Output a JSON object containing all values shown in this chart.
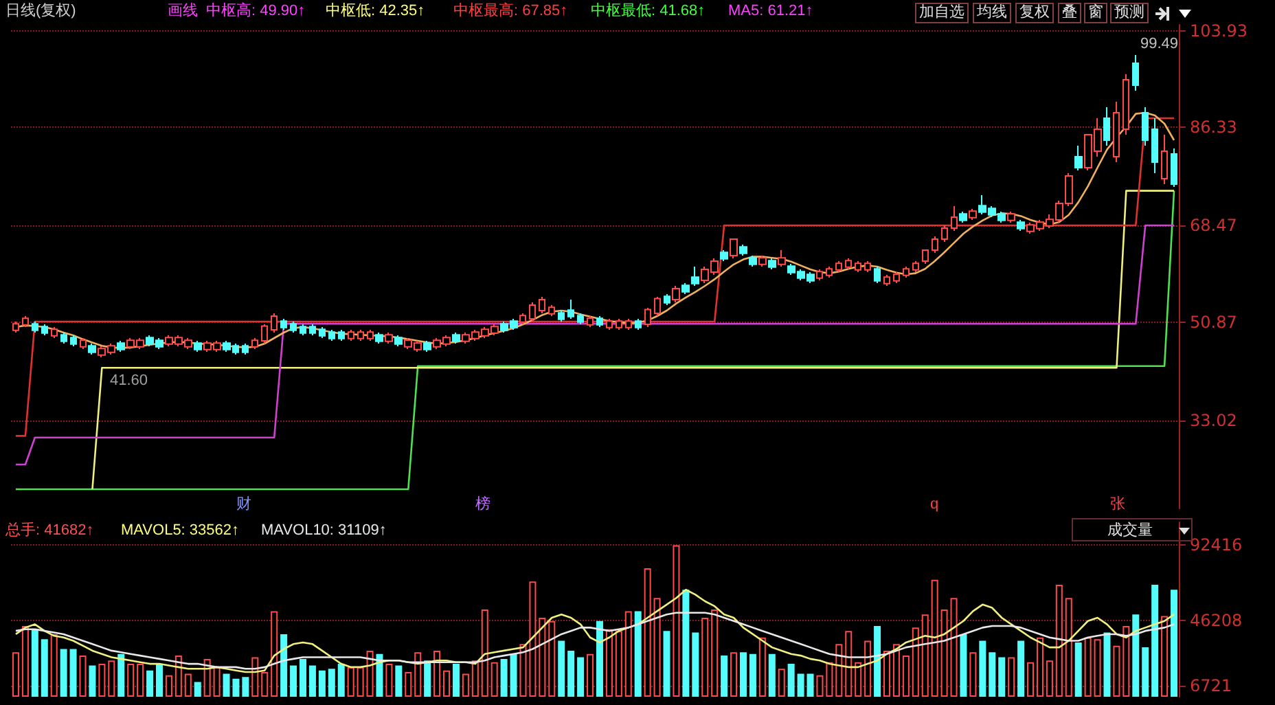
{
  "chart_data": [
    {
      "type": "candlestick",
      "categories": [
        null,
        null,
        null,
        null,
        null,
        null,
        null,
        null,
        null,
        null,
        null,
        null,
        null,
        null,
        null,
        null,
        null,
        null,
        null,
        null,
        null,
        null,
        null,
        null,
        null,
        null,
        null,
        null,
        null,
        null,
        null,
        null,
        null,
        null,
        null,
        null,
        null,
        null,
        null,
        null,
        null,
        null,
        null,
        null,
        null,
        null,
        null,
        null,
        null,
        null,
        null,
        null,
        null,
        null,
        null,
        null,
        null,
        null,
        null,
        null,
        null,
        null,
        null,
        null,
        null,
        null,
        null,
        null,
        null,
        null,
        null,
        null,
        null,
        null,
        null,
        null,
        null,
        null,
        null,
        null,
        null,
        null,
        null,
        null,
        null,
        null,
        null,
        null,
        null,
        null,
        null,
        null,
        null,
        null,
        null,
        null,
        null,
        null,
        null,
        null,
        null,
        null,
        null,
        null,
        null,
        null,
        null,
        null,
        null,
        null,
        null,
        null,
        null,
        null,
        null,
        null,
        null,
        null,
        null,
        null,
        null,
        null
      ],
      "ohlc": [
        [
          49.4,
          51,
          49,
          50.6
        ],
        [
          50.4,
          52,
          50,
          51.6
        ],
        [
          50.6,
          51,
          49,
          49.4
        ],
        [
          50.1,
          50.5,
          48.5,
          48.9
        ],
        [
          48.4,
          50,
          48,
          49.6
        ],
        [
          48.6,
          49,
          47,
          47.4
        ],
        [
          48.1,
          48.5,
          46.5,
          46.9
        ],
        [
          46.4,
          48,
          46,
          47.6
        ],
        [
          46.6,
          47,
          45,
          45.4
        ],
        [
          44.9,
          46.5,
          44.5,
          46.1
        ],
        [
          45.4,
          47,
          45,
          46.6
        ],
        [
          47.1,
          47.5,
          45.5,
          45.9
        ],
        [
          46.4,
          48,
          46,
          47.6
        ],
        [
          46.4,
          48,
          46,
          47.6
        ],
        [
          48.1,
          48.5,
          46.5,
          46.9
        ],
        [
          47.6,
          48,
          46,
          46.4
        ],
        [
          46.9,
          48.5,
          46.5,
          48.1
        ],
        [
          46.9,
          48.5,
          46.5,
          48.1
        ],
        [
          46.4,
          48,
          46,
          47.6
        ],
        [
          47.1,
          47.5,
          45.5,
          45.9
        ],
        [
          45.9,
          47.5,
          45.5,
          47.1
        ],
        [
          45.9,
          47.5,
          45.5,
          47.1
        ],
        [
          47.1,
          47.5,
          45.5,
          45.9
        ],
        [
          46.6,
          47,
          45,
          45.4
        ],
        [
          46.6,
          47,
          45,
          45.4
        ],
        [
          46.4,
          48,
          46,
          47.6
        ],
        [
          47.5,
          50.5,
          47,
          50.2
        ],
        [
          49.5,
          52.5,
          49,
          52
        ],
        [
          51.1,
          51.5,
          49.5,
          49.9
        ],
        [
          50.6,
          51,
          49,
          49.4
        ],
        [
          50.1,
          50.5,
          48.5,
          48.9
        ],
        [
          50.1,
          50.5,
          48.5,
          48.9
        ],
        [
          49.6,
          50,
          48,
          48.4
        ],
        [
          49.1,
          49.5,
          47.5,
          47.9
        ],
        [
          49.1,
          49.5,
          47.5,
          47.9
        ],
        [
          47.9,
          49.5,
          47.5,
          49.1
        ],
        [
          47.9,
          49.5,
          47.5,
          49.1
        ],
        [
          47.9,
          49.5,
          47.5,
          49.1
        ],
        [
          48.6,
          49,
          47,
          47.4
        ],
        [
          47.4,
          49,
          47,
          48.6
        ],
        [
          48.1,
          48.5,
          46.5,
          46.9
        ],
        [
          46.4,
          48,
          46,
          47.6
        ],
        [
          45.9,
          47.5,
          45.5,
          47.1
        ],
        [
          47.1,
          47.5,
          45.5,
          45.9
        ],
        [
          46.4,
          48,
          46,
          47.6
        ],
        [
          46.9,
          48.5,
          46.5,
          48.1
        ],
        [
          48.6,
          49,
          47,
          47.4
        ],
        [
          47.4,
          49,
          47,
          48.6
        ],
        [
          47.9,
          49.5,
          47.5,
          49.1
        ],
        [
          48.4,
          50,
          48,
          49.6
        ],
        [
          48.9,
          50.5,
          48.5,
          50.1
        ],
        [
          50.6,
          51,
          49,
          49.4
        ],
        [
          51.1,
          51.5,
          49.5,
          49.9
        ],
        [
          50.9,
          52.5,
          50.5,
          52.1
        ],
        [
          51.5,
          54.5,
          51,
          54
        ],
        [
          53,
          55.5,
          52.5,
          55
        ],
        [
          52.4,
          54,
          52,
          53.6
        ],
        [
          52.6,
          53,
          51,
          51.4
        ],
        [
          53.1,
          55,
          51.5,
          51.9
        ],
        [
          52.1,
          52.5,
          50.5,
          50.9
        ],
        [
          50.4,
          52,
          50,
          51.6
        ],
        [
          51.6,
          52,
          50,
          50.4
        ],
        [
          49.9,
          51.5,
          49.5,
          51.1
        ],
        [
          49.9,
          51.5,
          49.5,
          51.1
        ],
        [
          49.9,
          51.5,
          49.5,
          51.1
        ],
        [
          51.1,
          51.5,
          49.5,
          49.9
        ],
        [
          50.5,
          53.5,
          50,
          53.2
        ],
        [
          52.5,
          55.5,
          52,
          55.2
        ],
        [
          55.6,
          56,
          54,
          54.4
        ],
        [
          55,
          57.5,
          54.5,
          57
        ],
        [
          57.6,
          58,
          56,
          56.4
        ],
        [
          59.1,
          61,
          57.5,
          57.9
        ],
        [
          58.5,
          61,
          58,
          60.5
        ],
        [
          60,
          62.5,
          59.5,
          62
        ],
        [
          63.6,
          64,
          62,
          62.4
        ],
        [
          63,
          66,
          62.5,
          66
        ],
        [
          64.6,
          65,
          63,
          63.4
        ],
        [
          62.6,
          63,
          61,
          61.4
        ],
        [
          61.4,
          63,
          61,
          62.6
        ],
        [
          62.1,
          62.5,
          60.5,
          60.9
        ],
        [
          61.4,
          64,
          61,
          62.6
        ],
        [
          61.1,
          61.5,
          59.5,
          59.9
        ],
        [
          60.1,
          60.5,
          58.5,
          58.9
        ],
        [
          59.6,
          60,
          58,
          58.4
        ],
        [
          58.9,
          60.5,
          58.5,
          60.1
        ],
        [
          59.4,
          61,
          59,
          60.6
        ],
        [
          60.4,
          62,
          60,
          61.6
        ],
        [
          60.9,
          62.5,
          60.5,
          62.1
        ],
        [
          60.4,
          62,
          60,
          61.6
        ],
        [
          60.4,
          62,
          60,
          61.6
        ],
        [
          60.6,
          61,
          58,
          58.4
        ],
        [
          57.9,
          59.5,
          57.5,
          59.1
        ],
        [
          58.4,
          60,
          58,
          59.6
        ],
        [
          59.4,
          61,
          59,
          60.6
        ],
        [
          60.4,
          62,
          60,
          61.6
        ],
        [
          62,
          64,
          61.5,
          64
        ],
        [
          64,
          66.5,
          63.5,
          66
        ],
        [
          66,
          68.5,
          65.5,
          68
        ],
        [
          68,
          72,
          67.5,
          70
        ],
        [
          70.6,
          71,
          69,
          69.4
        ],
        [
          69.9,
          71.5,
          69.5,
          71.1
        ],
        [
          72.1,
          74,
          70.5,
          70.9
        ],
        [
          71.6,
          72,
          70,
          70.4
        ],
        [
          70.6,
          71,
          69,
          69.4
        ],
        [
          69.4,
          71,
          69,
          70.6
        ],
        [
          69.1,
          69.5,
          67.5,
          67.9
        ],
        [
          67.4,
          69,
          67,
          68.6
        ],
        [
          67.9,
          69.5,
          67.5,
          69.1
        ],
        [
          68.4,
          70.5,
          68,
          69.6
        ],
        [
          69.5,
          73,
          69,
          72.5
        ],
        [
          72.5,
          78,
          72,
          77.5
        ],
        [
          81,
          83,
          78.5,
          79
        ],
        [
          79,
          85,
          78.5,
          85
        ],
        [
          82,
          88,
          81,
          86
        ],
        [
          88,
          90,
          83,
          84
        ],
        [
          81,
          91,
          80,
          89
        ],
        [
          86,
          96,
          85,
          95
        ],
        [
          98,
          99.49,
          93,
          94
        ],
        [
          89,
          90,
          83,
          84
        ],
        [
          86,
          88,
          78,
          80
        ],
        [
          77,
          85,
          76,
          82
        ],
        [
          81.5,
          82.5,
          75.5,
          76
        ]
      ],
      "colors": [
        "#ff4a4a",
        "#ff4a4a",
        "#54fcfc",
        "#54fcfc",
        "#ff4a4a",
        "#54fcfc",
        "#54fcfc",
        "#ff4a4a",
        "#54fcfc",
        "#ff4a4a",
        "#ff4a4a",
        "#54fcfc",
        "#ff4a4a",
        "#ff4a4a",
        "#54fcfc",
        "#54fcfc",
        "#ff4a4a",
        "#ff4a4a",
        "#ff4a4a",
        "#54fcfc",
        "#ff4a4a",
        "#ff4a4a",
        "#54fcfc",
        "#54fcfc",
        "#54fcfc",
        "#ff4a4a",
        "#ff4a4a",
        "#ff4a4a",
        "#54fcfc",
        "#54fcfc",
        "#54fcfc",
        "#54fcfc",
        "#54fcfc",
        "#54fcfc",
        "#54fcfc",
        "#ff4a4a",
        "#ff4a4a",
        "#ff4a4a",
        "#54fcfc",
        "#ff4a4a",
        "#54fcfc",
        "#ff4a4a",
        "#ff4a4a",
        "#54fcfc",
        "#ff4a4a",
        "#ff4a4a",
        "#54fcfc",
        "#ff4a4a",
        "#ff4a4a",
        "#ff4a4a",
        "#ff4a4a",
        "#54fcfc",
        "#54fcfc",
        "#ff4a4a",
        "#ff4a4a",
        "#ff4a4a",
        "#ff4a4a",
        "#54fcfc",
        "#54fcfc",
        "#54fcfc",
        "#ff4a4a",
        "#54fcfc",
        "#ff4a4a",
        "#ff4a4a",
        "#ff4a4a",
        "#54fcfc",
        "#ff4a4a",
        "#ff4a4a",
        "#54fcfc",
        "#ff4a4a",
        "#54fcfc",
        "#54fcfc",
        "#ff4a4a",
        "#ff4a4a",
        "#54fcfc",
        "#ff4a4a",
        "#54fcfc",
        "#54fcfc",
        "#ff4a4a",
        "#54fcfc",
        "#ff4a4a",
        "#54fcfc",
        "#54fcfc",
        "#54fcfc",
        "#ff4a4a",
        "#ff4a4a",
        "#ff4a4a",
        "#ff4a4a",
        "#ff4a4a",
        "#ff4a4a",
        "#54fcfc",
        "#ff4a4a",
        "#ff4a4a",
        "#ff4a4a",
        "#ff4a4a",
        "#ff4a4a",
        "#ff4a4a",
        "#ff4a4a",
        "#ff4a4a",
        "#54fcfc",
        "#ff4a4a",
        "#54fcfc",
        "#54fcfc",
        "#54fcfc",
        "#ff4a4a",
        "#54fcfc",
        "#ff4a4a",
        "#ff4a4a",
        "#ff4a4a",
        "#ff4a4a",
        "#ff4a4a",
        "#54fcfc",
        "#ff4a4a",
        "#ff4a4a",
        "#54fcfc",
        "#ff4a4a",
        "#ff4a4a",
        "#54fcfc",
        "#54fcfc",
        "#54fcfc",
        "#ff4a4a",
        "#54fcfc"
      ],
      "series": [
        {
          "type": "line",
          "color": "#f0b060",
          "values": [
            50,
            50.3,
            50.2,
            50,
            49.6,
            49,
            48.5,
            47.8,
            47.2,
            46.6,
            46.3,
            46.2,
            46.3,
            46.5,
            46.8,
            47,
            47.2,
            47.3,
            47.2,
            47,
            46.9,
            46.8,
            46.6,
            46.4,
            46.3,
            46.4,
            47,
            48,
            49,
            49.8,
            50,
            49.8,
            49.4,
            49.1,
            48.8,
            48.7,
            48.6,
            48.5,
            48.4,
            48.3,
            48.1,
            47.8,
            47.5,
            47.2,
            47,
            47.1,
            47.3,
            47.6,
            48,
            48.5,
            48.9,
            49.3,
            49.8,
            50.5,
            51.3,
            52.2,
            52.8,
            53,
            52.8,
            52.3,
            51.9,
            51.5,
            51.1,
            50.9,
            50.7,
            50.8,
            51.2,
            52,
            53,
            54.3,
            55.4,
            56.4,
            57.5,
            58.7,
            60.1,
            61.4,
            62.3,
            62.8,
            62.8,
            62.6,
            62.4,
            61.9,
            61.2,
            60.5,
            60,
            59.8,
            60.1,
            60.6,
            61,
            61.2,
            61,
            60.4,
            59.9,
            59.6,
            59.8,
            60.6,
            62,
            63.6,
            65.3,
            67,
            68.3,
            69.4,
            70.3,
            70.7,
            70.6,
            70.2,
            69.5,
            69,
            68.7,
            69.1,
            70.4,
            72.7,
            75.6,
            79,
            82.3,
            84.5,
            86.5,
            88.8,
            89,
            88.5,
            87,
            84
          ]
        },
        {
          "type": "line",
          "color": "#e03030",
          "values": [
            30.2,
            30.2,
            51,
            51,
            51,
            51,
            51,
            51,
            51,
            51,
            51,
            51,
            51,
            51,
            51,
            51,
            51,
            51,
            51,
            51,
            51,
            51,
            51,
            51,
            51,
            51,
            51,
            51,
            51,
            51,
            51,
            51,
            51,
            51,
            51,
            51,
            51,
            51,
            51,
            51,
            51,
            51,
            51,
            51,
            51,
            51,
            51,
            51,
            51,
            51,
            51,
            51,
            51,
            51,
            51,
            51,
            51,
            51,
            51,
            51,
            51,
            51,
            51,
            51,
            51,
            51,
            51,
            51,
            51,
            51,
            51,
            51,
            51,
            51,
            68.5,
            68.5,
            68.5,
            68.5,
            68.5,
            68.5,
            68.5,
            68.5,
            68.5,
            68.5,
            68.5,
            68.5,
            68.5,
            68.5,
            68.5,
            68.5,
            68.5,
            68.5,
            68.5,
            68.5,
            68.5,
            68.5,
            68.5,
            68.5,
            68.5,
            68.5,
            68.5,
            68.5,
            68.5,
            68.5,
            68.5,
            68.5,
            68.5,
            68.5,
            68.5,
            68.5,
            68.5,
            68.5,
            68.5,
            68.5,
            68.5,
            68.5,
            68.5,
            68.5,
            88,
            88,
            88,
            88
          ]
        },
        {
          "type": "line",
          "color": "#d040d0",
          "values": [
            25,
            25,
            29.9,
            29.9,
            29.9,
            29.9,
            29.9,
            29.9,
            29.9,
            29.9,
            29.9,
            29.9,
            29.9,
            29.9,
            29.9,
            29.9,
            29.9,
            29.9,
            29.9,
            29.9,
            29.9,
            29.9,
            29.9,
            29.9,
            29.9,
            29.9,
            29.9,
            29.9,
            50.6,
            50.6,
            50.6,
            50.6,
            50.6,
            50.6,
            50.6,
            50.6,
            50.6,
            50.6,
            50.6,
            50.6,
            50.6,
            50.6,
            50.6,
            50.6,
            50.6,
            50.6,
            50.6,
            50.6,
            50.6,
            50.6,
            50.6,
            50.6,
            50.6,
            50.6,
            50.6,
            50.6,
            50.6,
            50.6,
            50.6,
            50.6,
            50.6,
            50.6,
            50.6,
            50.6,
            50.6,
            50.6,
            50.6,
            50.6,
            50.6,
            50.6,
            50.6,
            50.6,
            50.6,
            50.6,
            50.6,
            50.6,
            50.6,
            50.6,
            50.6,
            50.6,
            50.6,
            50.6,
            50.6,
            50.6,
            50.6,
            50.6,
            50.6,
            50.6,
            50.6,
            50.6,
            50.6,
            50.6,
            50.6,
            50.6,
            50.6,
            50.6,
            50.6,
            50.6,
            50.6,
            50.6,
            50.6,
            50.6,
            50.6,
            50.6,
            50.6,
            50.6,
            50.6,
            50.6,
            50.6,
            50.6,
            50.6,
            50.6,
            50.6,
            50.6,
            50.6,
            50.6,
            50.6,
            50.6,
            68.5,
            68.5,
            68.5,
            68.5
          ]
        },
        {
          "type": "line",
          "color": "#f0f080",
          "values": [
            null,
            null,
            null,
            null,
            null,
            null,
            null,
            null,
            20.5,
            42.6,
            42.6,
            42.6,
            42.6,
            42.6,
            42.6,
            42.6,
            42.6,
            42.6,
            42.6,
            42.6,
            42.6,
            42.6,
            42.6,
            42.6,
            42.6,
            42.6,
            42.6,
            42.6,
            42.6,
            42.6,
            42.6,
            42.6,
            42.6,
            42.6,
            42.6,
            42.6,
            42.6,
            42.6,
            42.6,
            42.6,
            42.6,
            42.6,
            42.6,
            42.6,
            42.6,
            42.6,
            42.6,
            42.6,
            42.6,
            42.6,
            42.6,
            42.6,
            42.6,
            42.6,
            42.6,
            42.6,
            42.6,
            42.6,
            42.6,
            42.6,
            42.6,
            42.6,
            42.6,
            42.6,
            42.6,
            42.6,
            42.6,
            42.6,
            42.6,
            42.6,
            42.6,
            42.6,
            42.6,
            42.6,
            42.6,
            42.6,
            42.6,
            42.6,
            42.6,
            42.6,
            42.6,
            42.6,
            42.6,
            42.6,
            42.6,
            42.6,
            42.6,
            42.6,
            42.6,
            42.6,
            42.6,
            42.6,
            42.6,
            42.6,
            42.6,
            42.6,
            42.6,
            42.6,
            42.6,
            42.6,
            42.6,
            42.6,
            42.6,
            42.6,
            42.6,
            42.6,
            42.6,
            42.6,
            42.6,
            42.6,
            42.6,
            42.6,
            42.6,
            42.6,
            42.6,
            42.6,
            74.8,
            74.8,
            74.8,
            74.8,
            74.8,
            74.8
          ]
        },
        {
          "type": "line",
          "color": "#50e050",
          "values": [
            20.5,
            20.5,
            20.5,
            20.5,
            20.5,
            20.5,
            20.5,
            20.5,
            20.5,
            20.5,
            20.5,
            20.5,
            20.5,
            20.5,
            20.5,
            20.5,
            20.5,
            20.5,
            20.5,
            20.5,
            20.5,
            20.5,
            20.5,
            20.5,
            20.5,
            20.5,
            20.5,
            20.5,
            20.5,
            20.5,
            20.5,
            20.5,
            20.5,
            20.5,
            20.5,
            20.5,
            20.5,
            20.5,
            20.5,
            20.5,
            20.5,
            20.5,
            42.9,
            42.9,
            42.9,
            42.9,
            42.9,
            42.9,
            42.9,
            42.9,
            42.9,
            42.9,
            42.9,
            42.9,
            42.9,
            42.9,
            42.9,
            42.9,
            42.9,
            42.9,
            42.9,
            42.9,
            42.9,
            42.9,
            42.9,
            42.9,
            42.9,
            42.9,
            42.9,
            42.9,
            42.9,
            42.9,
            42.9,
            42.9,
            42.9,
            42.9,
            42.9,
            42.9,
            42.9,
            42.9,
            42.9,
            42.9,
            42.9,
            42.9,
            42.9,
            42.9,
            42.9,
            42.9,
            42.9,
            42.9,
            42.9,
            42.9,
            42.9,
            42.9,
            42.9,
            42.9,
            42.9,
            42.9,
            42.9,
            42.9,
            42.9,
            42.9,
            42.9,
            42.9,
            42.9,
            42.9,
            42.9,
            42.9,
            42.9,
            42.9,
            42.9,
            42.9,
            42.9,
            42.9,
            42.9,
            42.9,
            42.9,
            42.9,
            42.9,
            42.9,
            42.9,
            74.8
          ]
        }
      ],
      "ylim": [
        17,
        105
      ],
      "yticks": [
        33.02,
        50.87,
        68.47,
        86.33,
        103.93
      ],
      "grid": "y",
      "tick_labels": "y",
      "annotations": [
        "日线(复权)",
        "画线",
        "中枢高: 49.90↑",
        "中枢低: 42.35↑",
        "中枢最高: 67.85↑",
        "中枢最低: 41.68↑",
        "MA5: 61.21↑",
        "加自选",
        "均线",
        "复权",
        "叠",
        "窗",
        "预测",
        "41.60",
        "99.49",
        "财",
        "榜",
        "q",
        "张"
      ]
    },
    {
      "type": "bar",
      "categories": [
        null,
        null,
        null,
        null,
        null,
        null,
        null,
        null,
        null,
        null,
        null,
        null,
        null,
        null,
        null,
        null,
        null,
        null,
        null,
        null,
        null,
        null,
        null,
        null,
        null,
        null,
        null,
        null,
        null,
        null,
        null,
        null,
        null,
        null,
        null,
        null,
        null,
        null,
        null,
        null,
        null,
        null,
        null,
        null,
        null,
        null,
        null,
        null,
        null,
        null,
        null,
        null,
        null,
        null,
        null,
        null,
        null,
        null,
        null,
        null,
        null,
        null,
        null,
        null,
        null,
        null,
        null,
        null,
        null,
        null,
        null,
        null,
        null,
        null,
        null,
        null,
        null,
        null,
        null,
        null,
        null,
        null,
        null,
        null,
        null,
        null,
        null,
        null,
        null,
        null,
        null,
        null,
        null,
        null,
        null,
        null,
        null,
        null,
        null,
        null,
        null,
        null,
        null,
        null,
        null,
        null,
        null,
        null,
        null,
        null,
        null,
        null,
        null,
        null,
        null,
        null,
        null,
        null,
        null,
        null,
        null,
        null
      ],
      "series": [
        {
          "type": "bar",
          "colors": [
            "#ff4a4a",
            "#ff4a4a",
            "#54fcfc",
            "#54fcfc",
            "#ff4a4a",
            "#54fcfc",
            "#54fcfc",
            "#ff4a4a",
            "#54fcfc",
            "#ff4a4a",
            "#ff4a4a",
            "#54fcfc",
            "#ff4a4a",
            "#ff4a4a",
            "#54fcfc",
            "#54fcfc",
            "#ff4a4a",
            "#ff4a4a",
            "#ff4a4a",
            "#54fcfc",
            "#ff4a4a",
            "#ff4a4a",
            "#54fcfc",
            "#54fcfc",
            "#54fcfc",
            "#ff4a4a",
            "#ff4a4a",
            "#ff4a4a",
            "#54fcfc",
            "#54fcfc",
            "#54fcfc",
            "#54fcfc",
            "#54fcfc",
            "#54fcfc",
            "#54fcfc",
            "#ff4a4a",
            "#ff4a4a",
            "#ff4a4a",
            "#54fcfc",
            "#ff4a4a",
            "#54fcfc",
            "#ff4a4a",
            "#ff4a4a",
            "#54fcfc",
            "#ff4a4a",
            "#ff4a4a",
            "#54fcfc",
            "#ff4a4a",
            "#ff4a4a",
            "#ff4a4a",
            "#ff4a4a",
            "#54fcfc",
            "#54fcfc",
            "#ff4a4a",
            "#ff4a4a",
            "#ff4a4a",
            "#ff4a4a",
            "#54fcfc",
            "#54fcfc",
            "#54fcfc",
            "#ff4a4a",
            "#54fcfc",
            "#ff4a4a",
            "#ff4a4a",
            "#ff4a4a",
            "#54fcfc",
            "#ff4a4a",
            "#ff4a4a",
            "#54fcfc",
            "#ff4a4a",
            "#54fcfc",
            "#54fcfc",
            "#ff4a4a",
            "#ff4a4a",
            "#54fcfc",
            "#ff4a4a",
            "#54fcfc",
            "#54fcfc",
            "#ff4a4a",
            "#54fcfc",
            "#ff4a4a",
            "#54fcfc",
            "#54fcfc",
            "#54fcfc",
            "#ff4a4a",
            "#ff4a4a",
            "#ff4a4a",
            "#ff4a4a",
            "#ff4a4a",
            "#ff4a4a",
            "#54fcfc",
            "#ff4a4a",
            "#ff4a4a",
            "#ff4a4a",
            "#ff4a4a",
            "#ff4a4a",
            "#ff4a4a",
            "#ff4a4a",
            "#ff4a4a",
            "#54fcfc",
            "#ff4a4a",
            "#54fcfc",
            "#54fcfc",
            "#54fcfc",
            "#ff4a4a",
            "#54fcfc",
            "#ff4a4a",
            "#ff4a4a",
            "#ff4a4a",
            "#ff4a4a",
            "#ff4a4a",
            "#54fcfc",
            "#ff4a4a",
            "#ff4a4a",
            "#54fcfc",
            "#ff4a4a",
            "#ff4a4a",
            "#54fcfc",
            "#54fcfc",
            "#54fcfc",
            "#ff4a4a",
            "#54fcfc"
          ],
          "values": [
            27000,
            43000,
            41000,
            35000,
            38000,
            29000,
            29000,
            25000,
            19000,
            20000,
            22000,
            26000,
            20000,
            20000,
            16000,
            20000,
            13000,
            25000,
            14000,
            9000,
            23000,
            18000,
            14000,
            11000,
            12000,
            24000,
            15000,
            52000,
            38000,
            19000,
            23000,
            19000,
            16000,
            17000,
            20000,
            18000,
            18000,
            28000,
            26000,
            20000,
            19000,
            15000,
            27000,
            22000,
            28000,
            16000,
            20000,
            14000,
            22000,
            53000,
            21000,
            23000,
            26000,
            32000,
            70000,
            48000,
            46000,
            34000,
            28000,
            24000,
            26000,
            46000,
            41000,
            40000,
            52000,
            52000,
            78000,
            60000,
            40000,
            92000,
            65000,
            39000,
            48000,
            53000,
            25000,
            27000,
            27000,
            26000,
            36000,
            26000,
            17000,
            20000,
            14000,
            14000,
            13000,
            21000,
            32000,
            40000,
            21000,
            34000,
            43000,
            28000,
            32000,
            25000,
            42000,
            50000,
            71000,
            53000,
            60000,
            38000,
            27000,
            34000,
            27000,
            24000,
            24000,
            34000,
            21000,
            36000,
            22000,
            68000,
            60000,
            33000,
            36000,
            35000,
            39000,
            31000,
            43000,
            50000,
            30000,
            68000,
            49000,
            65000
          ]
        },
        {
          "type": "line",
          "color": "#f0f080",
          "values": [
            38000,
            42000,
            44000,
            40000,
            37000,
            36000,
            34000,
            31000,
            28000,
            26000,
            24000,
            23000,
            22000,
            21000,
            20000,
            20000,
            19000,
            18000,
            17000,
            17000,
            17000,
            18000,
            17000,
            16000,
            15000,
            15000,
            16000,
            25000,
            29000,
            32000,
            33000,
            32000,
            28000,
            24000,
            20000,
            18000,
            18000,
            19000,
            21000,
            22000,
            22000,
            21000,
            20000,
            21000,
            22000,
            22000,
            21000,
            21000,
            20000,
            26000,
            27000,
            28000,
            29000,
            30000,
            36000,
            42000,
            48000,
            50000,
            48000,
            44000,
            36000,
            33000,
            36000,
            40000,
            42000,
            44000,
            48000,
            52000,
            56000,
            60000,
            65000,
            62000,
            58000,
            55000,
            50000,
            48000,
            42000,
            38000,
            34000,
            30000,
            28000,
            26000,
            25000,
            23000,
            22000,
            20000,
            19000,
            18000,
            18000,
            20000,
            22000,
            26000,
            29000,
            33000,
            35000,
            37000,
            36000,
            38000,
            42000,
            46000,
            52000,
            56000,
            54000,
            48000,
            44000,
            40000,
            36000,
            33000,
            30000,
            30000,
            34000,
            40000,
            46000,
            48000,
            44000,
            38000,
            36000,
            40000,
            42000,
            44000,
            46000,
            50000
          ]
        },
        {
          "type": "line",
          "color": "#e8e8e8",
          "values": [
            40000,
            41000,
            41000,
            40000,
            39000,
            38000,
            36000,
            34000,
            32000,
            30000,
            28000,
            27000,
            26000,
            25000,
            24000,
            23000,
            22000,
            21000,
            20000,
            20000,
            19000,
            18000,
            18000,
            18000,
            17000,
            17000,
            18000,
            20000,
            22000,
            23000,
            24000,
            24000,
            24000,
            24000,
            24000,
            24000,
            24000,
            23000,
            22000,
            22000,
            22000,
            21000,
            21000,
            21000,
            21000,
            21000,
            21000,
            21000,
            21000,
            22000,
            24000,
            25000,
            26000,
            27000,
            29000,
            32000,
            35000,
            38000,
            40000,
            42000,
            42000,
            41000,
            40000,
            41000,
            42000,
            44000,
            46000,
            48000,
            50000,
            51000,
            51000,
            51000,
            51000,
            50000,
            48000,
            46000,
            44000,
            42000,
            40000,
            38000,
            36000,
            34000,
            32000,
            30000,
            28000,
            26000,
            25000,
            24000,
            24000,
            24000,
            25000,
            26000,
            28000,
            30000,
            31000,
            32000,
            33000,
            34000,
            36000,
            38000,
            40000,
            42000,
            43000,
            43000,
            43000,
            42000,
            40000,
            38000,
            36000,
            35000,
            34000,
            34000,
            36000,
            37000,
            38000,
            38000,
            37000,
            38000,
            40000,
            41000,
            42000,
            44000
          ]
        }
      ],
      "ylim": [
        0,
        106000
      ],
      "yticks": [
        6721,
        46208,
        92416
      ],
      "grid": "y",
      "tick_labels": "y",
      "annotations": [
        "总手: 41682↑",
        "MAVOL5: 33562↑",
        "MAVOL10: 31109↑",
        "成交量"
      ]
    }
  ]
}
